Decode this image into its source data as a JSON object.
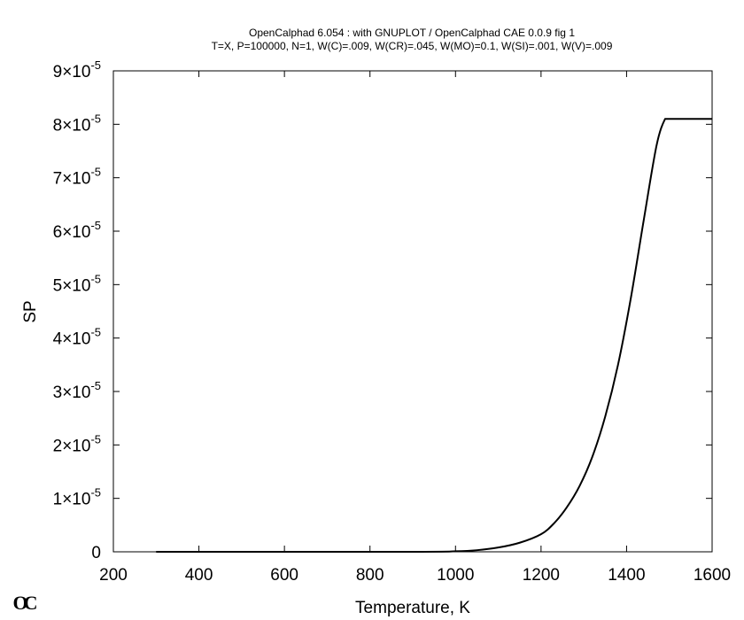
{
  "chart_data": {
    "type": "line",
    "title": "OpenCalphad   6.054 : with GNUPLOT / OpenCalphad CAE 0.0.9 fig 1",
    "subtitle": "T=X,  P=100000, N=1, W(C)=.009, W(CR)=.045, W(MO)=0.1, W(SI)=.001, W(V)=.009",
    "xlabel": "Temperature, K",
    "ylabel": "SP",
    "xlim": [
      200,
      1600
    ],
    "ylim": [
      0,
      9e-05
    ],
    "x_ticks": [
      {
        "value": 200,
        "label": "200"
      },
      {
        "value": 400,
        "label": "400"
      },
      {
        "value": 600,
        "label": "600"
      },
      {
        "value": 800,
        "label": "800"
      },
      {
        "value": 1000,
        "label": "1000"
      },
      {
        "value": 1200,
        "label": "1200"
      },
      {
        "value": 1400,
        "label": "1400"
      },
      {
        "value": 1600,
        "label": "1600"
      }
    ],
    "y_ticks": [
      {
        "value": 0,
        "mantissa": "0",
        "exponent": ""
      },
      {
        "value": 1e-05,
        "mantissa": "1×10",
        "exponent": "-5"
      },
      {
        "value": 2e-05,
        "mantissa": "2×10",
        "exponent": "-5"
      },
      {
        "value": 3e-05,
        "mantissa": "3×10",
        "exponent": "-5"
      },
      {
        "value": 4e-05,
        "mantissa": "4×10",
        "exponent": "-5"
      },
      {
        "value": 5e-05,
        "mantissa": "5×10",
        "exponent": "-5"
      },
      {
        "value": 6e-05,
        "mantissa": "6×10",
        "exponent": "-5"
      },
      {
        "value": 7e-05,
        "mantissa": "7×10",
        "exponent": "-5"
      },
      {
        "value": 8e-05,
        "mantissa": "8×10",
        "exponent": "-5"
      },
      {
        "value": 9e-05,
        "mantissa": "9×10",
        "exponent": "-5"
      }
    ],
    "grid": false,
    "series": [
      {
        "color": "#000000",
        "x": [
          300,
          900,
          1000,
          1050,
          1100,
          1150,
          1200,
          1230,
          1260,
          1290,
          1320,
          1350,
          1380,
          1410,
          1440,
          1470,
          1490,
          1500,
          1550,
          1600
        ],
        "y": [
          0,
          0,
          1e-07,
          3e-07,
          8e-07,
          1.7e-06,
          3.3e-06,
          5.3e-06,
          8.3e-06,
          1.23e-05,
          1.78e-05,
          2.53e-05,
          3.5e-05,
          4.75e-05,
          6.2e-05,
          7.6e-05,
          8.1e-05,
          8.1e-05,
          8.1e-05,
          8.1e-05
        ]
      }
    ]
  },
  "logo": {
    "text": "OC"
  }
}
